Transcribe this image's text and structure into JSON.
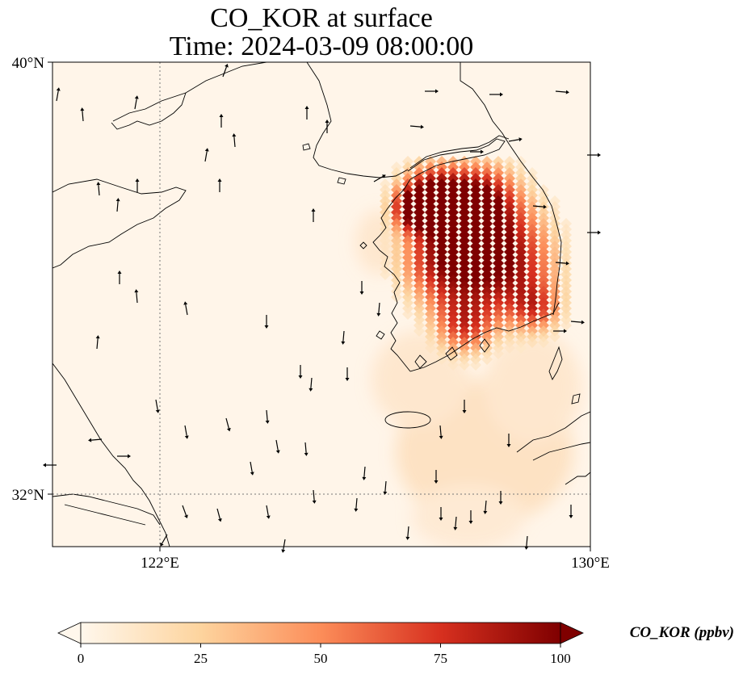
{
  "title": {
    "line1": "CO_KOR at surface",
    "line2": "Time: 2024-03-09 08:00:00"
  },
  "map": {
    "latitude_ticks": [
      "40°N",
      "32°N"
    ],
    "longitude_ticks": [
      "122°E",
      "130°E"
    ],
    "extent": {
      "lon": [
        120,
        130
      ],
      "lat": [
        31,
        40
      ]
    },
    "gridlines": "dotted at 122°E and 32°N",
    "background_color": "#fff5e9",
    "field_colormap": "OrRd"
  },
  "colorbar": {
    "label": "CO_KOR (ppbv)",
    "ticks": [
      "0",
      "25",
      "50",
      "75",
      "100"
    ],
    "range": [
      0,
      100
    ],
    "extend": "both",
    "colors": [
      "#fff7ec",
      "#fdd49e",
      "#fc8d59",
      "#d7301f",
      "#7f0000"
    ]
  }
}
